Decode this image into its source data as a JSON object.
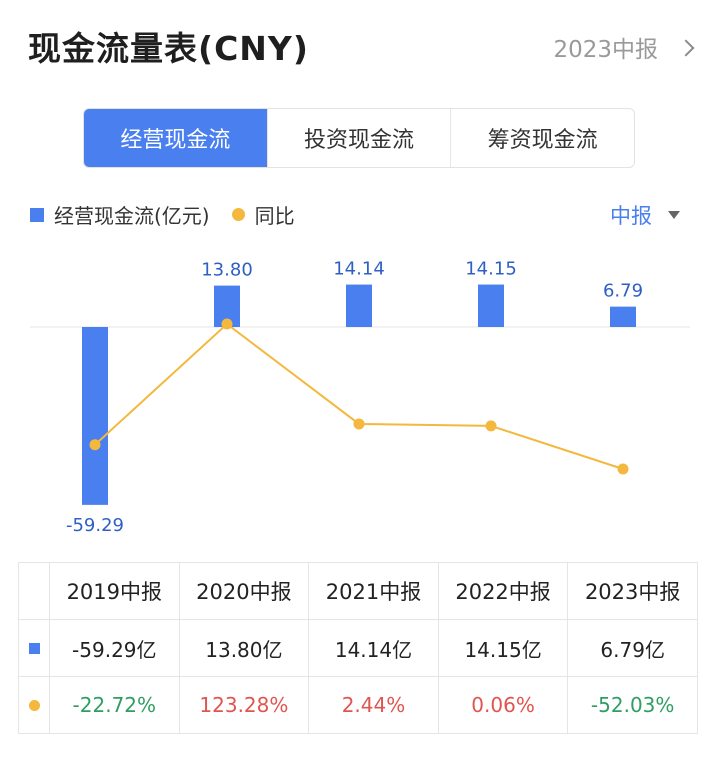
{
  "header": {
    "title": "现金流量表(CNY)",
    "period_link": "2023中报"
  },
  "tabs": [
    {
      "label": "经营现金流",
      "active": true
    },
    {
      "label": "投资现金流",
      "active": false
    },
    {
      "label": "筹资现金流",
      "active": false
    }
  ],
  "legend": {
    "bar_series": "经营现金流(亿元)",
    "line_series": "同比"
  },
  "period_select": "中报",
  "colors": {
    "bar": "#4a7ff0",
    "line": "#f3b83d",
    "positive": "#e0554f",
    "negative": "#2f9e63"
  },
  "chart_data": {
    "type": "bar",
    "categories": [
      "2019中报",
      "2020中报",
      "2021中报",
      "2022中报",
      "2023中报"
    ],
    "series": [
      {
        "name": "经营现金流(亿元)",
        "type": "bar",
        "values": [
          -59.29,
          13.8,
          14.14,
          14.15,
          6.79
        ]
      },
      {
        "name": "同比",
        "type": "line",
        "values": [
          -22.72,
          123.28,
          2.44,
          0.06,
          -52.03
        ]
      }
    ],
    "data_labels": [
      "-59.29",
      "13.80",
      "14.14",
      "14.15",
      "6.79"
    ],
    "bar_ylim": [
      -59.29,
      14.15
    ],
    "line_ylim": [
      -52.03,
      123.28
    ]
  },
  "table": {
    "headers": [
      "2019中报",
      "2020中报",
      "2021中报",
      "2022中报",
      "2023中报"
    ],
    "bar_row": [
      "-59.29亿",
      "13.80亿",
      "14.14亿",
      "14.15亿",
      "6.79亿"
    ],
    "line_row": [
      "-22.72%",
      "123.28%",
      "2.44%",
      "0.06%",
      "-52.03%"
    ]
  }
}
